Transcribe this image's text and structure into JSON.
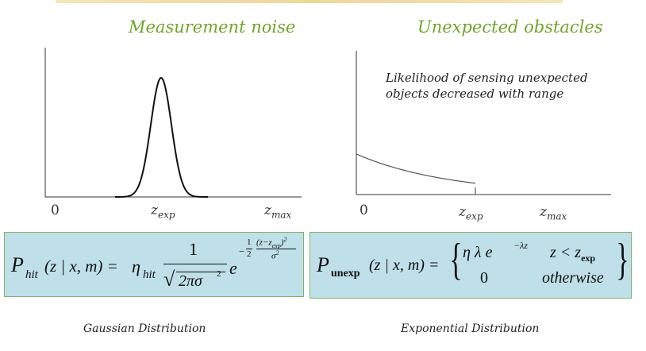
{
  "titles": {
    "left": "Measurement noise",
    "right": "Unexpected obstacles"
  },
  "annotation": {
    "line1": "Likelihood of sensing unexpected",
    "line2": "objects decreased with range"
  },
  "axis": {
    "zero": "0",
    "z": "z",
    "exp": "exp",
    "max": "max"
  },
  "formula_left": {
    "P": "P",
    "hit": "hit",
    "args": "(z | x, m) =",
    "eta": "η",
    "numerator": "1",
    "sqrt_body": "2πσ",
    "sq": "2",
    "e": "e",
    "minus": "−",
    "half_num": "1",
    "half_den": "2",
    "frac_num": "(z−z",
    "frac_num_end": ")",
    "frac_den": "σ"
  },
  "formula_right": {
    "P": "P",
    "unexp": "unexp",
    "args": "(z | x, m) =",
    "case1_expr": "η  λ  e",
    "case1_exp": "−λz",
    "case1_cond": "z < z",
    "case2_expr": "0",
    "case2_cond": "otherwise"
  },
  "captions": {
    "left": "Gaussian Distribution",
    "right": "Exponential Distribution"
  },
  "colors": {
    "title": "#6fa52a",
    "box_fill": "#bfe0e8",
    "box_border": "#7fb26a"
  }
}
